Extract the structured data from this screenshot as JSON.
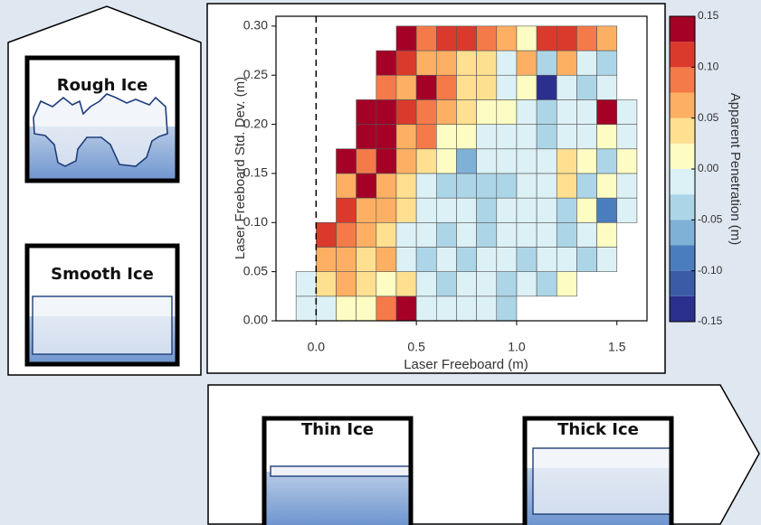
{
  "chart_data": {
    "type": "heatmap",
    "x_label": "Laser Freeboard (m)",
    "y_label": "Laser Freeboard Std. Dev. (m)",
    "colorbar_label": "Apparent Penetration (m)",
    "x_bins": [
      -0.1,
      0,
      0.1,
      0.2,
      0.3,
      0.4,
      0.5,
      0.6,
      0.7,
      0.8,
      0.9,
      1.0,
      1.1,
      1.2,
      1.3,
      1.4,
      1.5,
      1.6
    ],
    "y_bins": [
      0,
      0.025,
      0.05,
      0.075,
      0.1,
      0.125,
      0.15,
      0.175,
      0.2,
      0.225,
      0.25,
      0.275,
      0.3
    ],
    "values": [
      [
        -0.02,
        -0.02,
        0.01,
        0.01,
        0.08,
        0.14,
        -0.02,
        -0.02,
        -0.02,
        -0.02,
        -0.04,
        null,
        null,
        null,
        null,
        null,
        null
      ],
      [
        -0.02,
        0.03,
        0.05,
        0.03,
        0.01,
        0.03,
        -0.02,
        -0.04,
        -0.02,
        -0.02,
        -0.04,
        -0.02,
        -0.04,
        0.01,
        null,
        null,
        null
      ],
      [
        null,
        0.05,
        0.05,
        0.03,
        0.05,
        -0.02,
        -0.04,
        -0.02,
        -0.04,
        -0.02,
        -0.02,
        -0.04,
        -0.02,
        -0.02,
        -0.04,
        -0.02,
        null
      ],
      [
        null,
        0.1,
        0.08,
        0.05,
        0.03,
        -0.02,
        -0.02,
        -0.04,
        -0.02,
        -0.04,
        -0.02,
        -0.02,
        -0.02,
        -0.04,
        -0.02,
        0.01,
        null
      ],
      [
        null,
        null,
        0.1,
        0.05,
        0.05,
        0.03,
        -0.02,
        -0.02,
        -0.02,
        -0.04,
        -0.02,
        -0.02,
        -0.02,
        -0.04,
        0.01,
        -0.09,
        -0.02
      ],
      [
        null,
        null,
        0.05,
        0.14,
        0.05,
        0.03,
        -0.02,
        -0.04,
        -0.04,
        -0.04,
        -0.04,
        -0.02,
        -0.02,
        0.03,
        -0.04,
        0.01,
        -0.02
      ],
      [
        null,
        null,
        0.14,
        0.08,
        0.14,
        0.05,
        0.03,
        0.01,
        -0.07,
        -0.02,
        -0.02,
        -0.02,
        -0.02,
        0.03,
        0.01,
        -0.04,
        0.01
      ],
      [
        null,
        null,
        null,
        0.14,
        0.14,
        0.05,
        0.08,
        0.01,
        0.01,
        -0.02,
        -0.02,
        -0.02,
        -0.04,
        -0.02,
        -0.02,
        0.01,
        -0.02
      ],
      [
        null,
        null,
        null,
        0.14,
        0.14,
        0.1,
        0.08,
        0.05,
        0.03,
        0.01,
        0.01,
        -0.02,
        -0.04,
        -0.02,
        -0.02,
        0.14,
        -0.02
      ],
      [
        null,
        null,
        null,
        null,
        0.08,
        0.05,
        0.14,
        0.08,
        0.03,
        0.03,
        -0.02,
        0.01,
        -0.14,
        -0.02,
        -0.04,
        -0.02,
        null
      ],
      [
        null,
        null,
        null,
        null,
        0.14,
        0.1,
        0.05,
        0.05,
        0.03,
        0.03,
        -0.02,
        0.05,
        -0.04,
        0.05,
        -0.02,
        -0.04,
        null
      ],
      [
        null,
        null,
        null,
        null,
        null,
        0.14,
        0.08,
        0.1,
        0.1,
        0.08,
        0.05,
        0.01,
        0.1,
        0.1,
        0.08,
        0.05,
        null
      ]
    ],
    "xlim": [
      -0.2,
      1.65
    ],
    "ylim": [
      0,
      0.31
    ],
    "xticks": [
      {
        "value": 0,
        "label": "0.0"
      },
      0.5,
      {
        "value": 1,
        "label": "1.0"
      },
      1.5
    ],
    "yticks": [
      {
        "value": 0,
        "label": "0.00"
      },
      0.05,
      {
        "value": 0.1,
        "label": "0.10"
      },
      0.15,
      {
        "value": 0.2,
        "label": "0.20"
      },
      0.25,
      {
        "value": 0.3,
        "label": "0.30"
      }
    ],
    "clim": [
      -0.15,
      0.15
    ],
    "cticks": [
      -0.15,
      {
        "value": -0.1,
        "label": "-0.10"
      },
      -0.05,
      {
        "value": 0,
        "label": "0.00"
      },
      0.05,
      {
        "value": 0.1,
        "label": "0.10"
      },
      0.15
    ],
    "colors": [
      "#2b2f8e",
      "#3b5ba6",
      "#4a7dbd",
      "#7fb1d6",
      "#acd6e8",
      "#dcf1f6",
      "#fdfcc2",
      "#fee090",
      "#fdb063",
      "#f57a4a",
      "#da3a2c",
      "#a50026"
    ],
    "vline": 0
  },
  "diagram": {
    "labels": [
      "Rough Ice",
      "Smooth Ice",
      "Thin Ice",
      "Thick Ice"
    ]
  }
}
